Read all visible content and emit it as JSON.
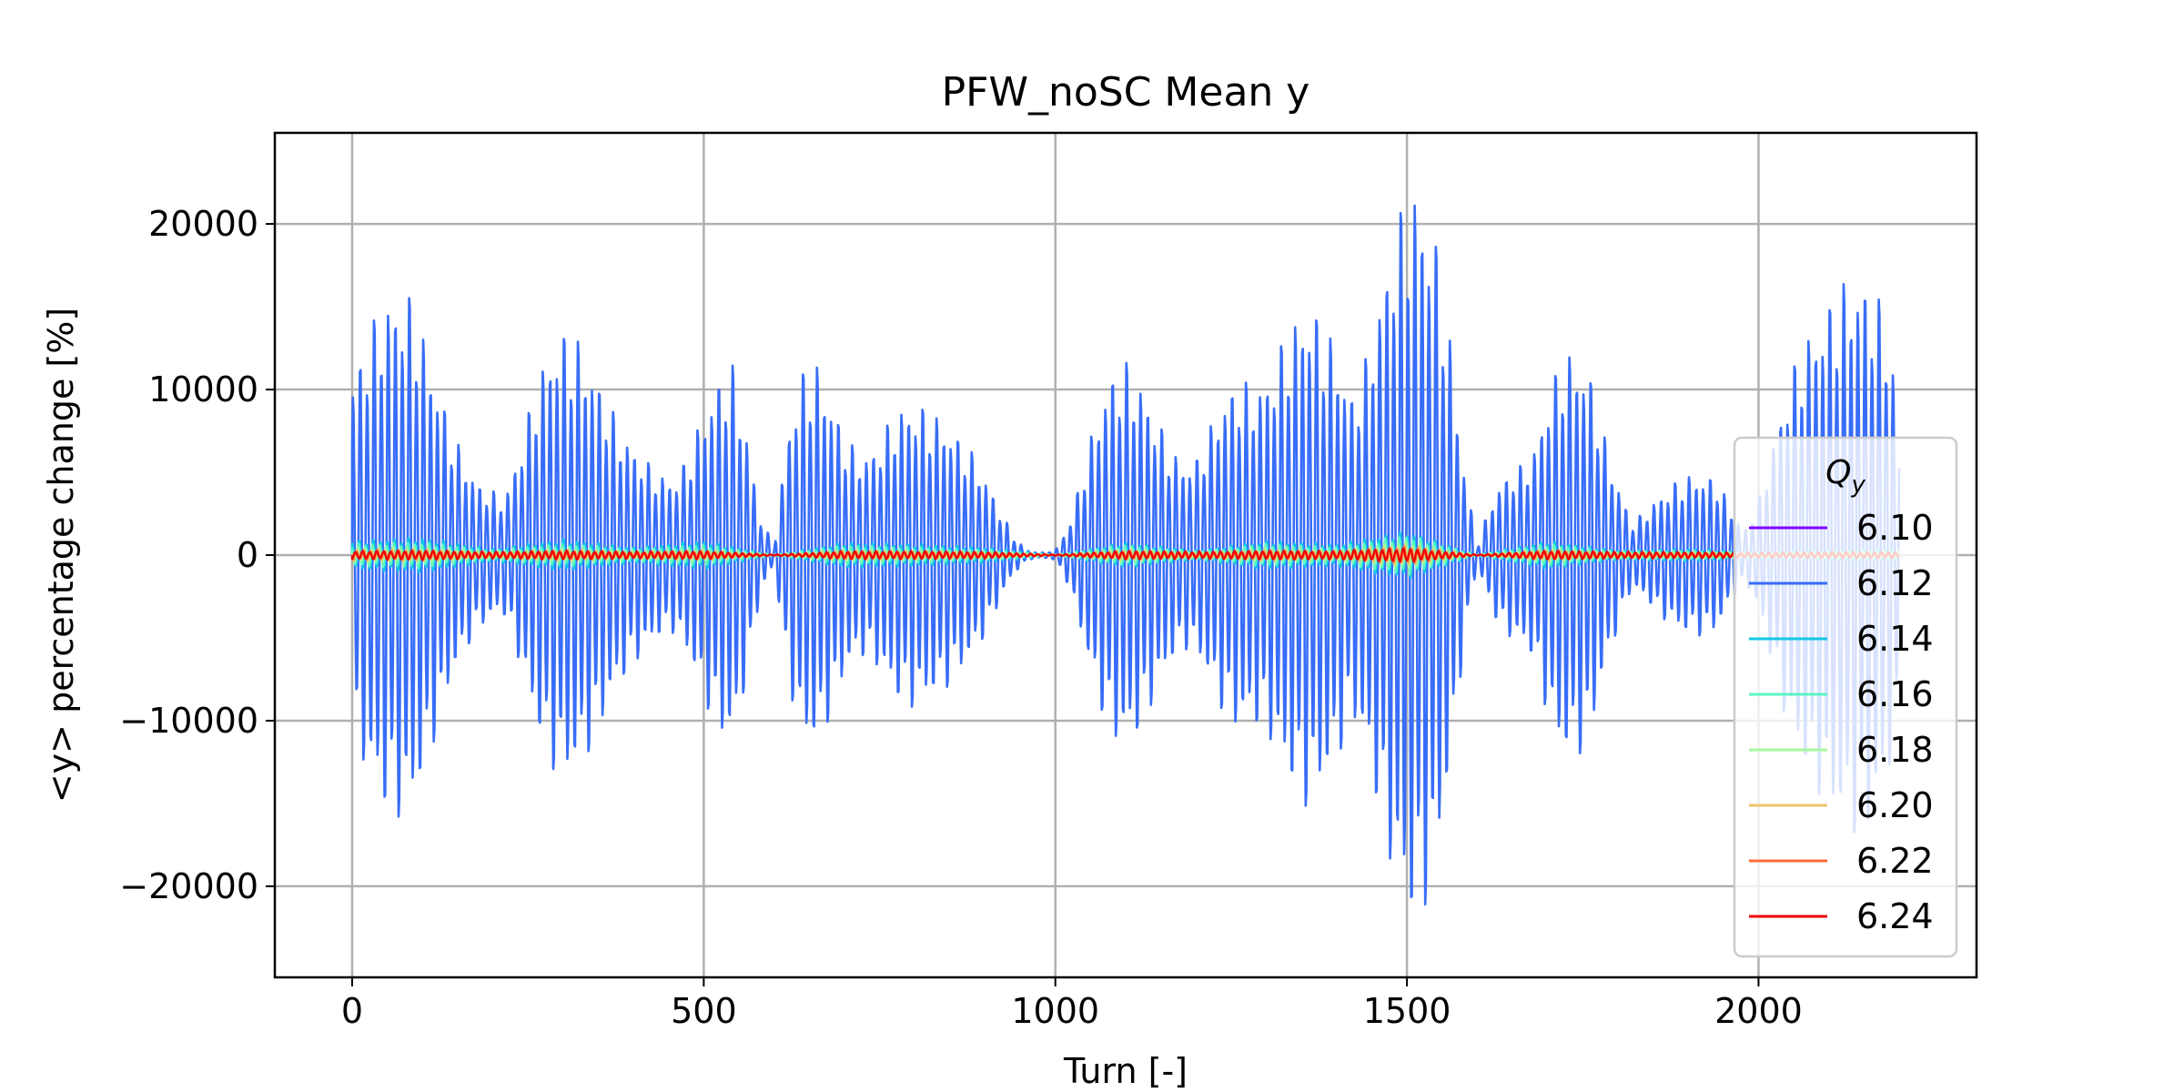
{
  "chart_data": {
    "type": "line",
    "title": "PFW_noSC Mean y",
    "xlabel": "Turn [-]",
    "ylabel": "<y> percentage change [%]",
    "xlim": [
      -110,
      2310
    ],
    "ylim": [
      -25500,
      25500
    ],
    "xticks": [
      0,
      500,
      1000,
      1500,
      2000
    ],
    "xtick_labels": [
      "0",
      "500",
      "1000",
      "1500",
      "2000"
    ],
    "yticks": [
      20000,
      10000,
      0,
      -10000,
      -20000
    ],
    "ytick_labels": [
      "20000",
      "10000",
      "0",
      "−10000",
      "−20000"
    ],
    "grid": true,
    "legend": {
      "title": "Q_y",
      "title_main": "Q",
      "title_sub": "y",
      "placement": "center-right"
    },
    "oscillation_period_turns": 10,
    "series": [
      {
        "name": "6.10",
        "color": "#7f00ff",
        "envelope": {
          "x": [
            0,
            100,
            300,
            600,
            1000,
            1500,
            1600,
            2000,
            2200
          ],
          "y": [
            60,
            80,
            60,
            5,
            5,
            90,
            5,
            40,
            60
          ]
        }
      },
      {
        "name": "6.12",
        "color": "#386df9",
        "envelope": {
          "x": [
            0,
            10,
            20,
            30,
            40,
            50,
            60,
            70,
            80,
            90,
            100,
            120,
            140,
            160,
            180,
            200,
            210,
            220,
            240,
            260,
            280,
            300,
            320,
            340,
            360,
            380,
            400,
            420,
            440,
            460,
            480,
            500,
            520,
            540,
            560,
            580,
            600,
            620,
            640,
            660,
            680,
            700,
            720,
            740,
            760,
            780,
            800,
            820,
            840,
            860,
            880,
            900,
            920,
            940,
            960,
            980,
            1000,
            1020,
            1040,
            1060,
            1080,
            1100,
            1120,
            1140,
            1160,
            1180,
            1200,
            1220,
            1240,
            1260,
            1280,
            1300,
            1320,
            1340,
            1360,
            1380,
            1400,
            1420,
            1440,
            1460,
            1480,
            1500,
            1510,
            1520,
            1540,
            1560,
            1580,
            1600,
            1620,
            1640,
            1660,
            1680,
            1700,
            1720,
            1740,
            1760,
            1780,
            1800,
            1820,
            1840,
            1860,
            1880,
            1900,
            1920,
            1940,
            1960,
            1980,
            2000,
            2020,
            2040,
            2060,
            2080,
            2100,
            2120,
            2140,
            2160,
            2180,
            2200
          ],
          "y": [
            11000,
            12500,
            13500,
            14500,
            15500,
            16000,
            16300,
            16400,
            16300,
            15500,
            14000,
            11000,
            8000,
            6000,
            4500,
            4000,
            3600,
            4000,
            7000,
            10500,
            13000,
            14000,
            13500,
            12000,
            10000,
            8000,
            6800,
            5800,
            5000,
            4800,
            6500,
            9000,
            11000,
            12000,
            8000,
            2500,
            500,
            8000,
            11500,
            12000,
            10000,
            7500,
            6300,
            6500,
            8000,
            9300,
            9500,
            9000,
            8500,
            7500,
            6500,
            5000,
            3000,
            1200,
            300,
            150,
            300,
            2000,
            5500,
            9000,
            11500,
            12000,
            11000,
            9000,
            7000,
            5800,
            6000,
            8000,
            10000,
            11000,
            10500,
            11000,
            13000,
            14800,
            15800,
            14500,
            13000,
            10000,
            12000,
            16000,
            20000,
            22500,
            23000,
            22500,
            20000,
            14000,
            6000,
            500,
            3500,
            5000,
            5500,
            6500,
            10000,
            12500,
            12700,
            11500,
            7500,
            4500,
            2000,
            2800,
            3800,
            4500,
            5000,
            5000,
            4800,
            3000,
            1500,
            3500,
            7000,
            10500,
            13000,
            14500,
            15800,
            17000,
            17500,
            17000,
            15000,
            10000
          ]
        }
      },
      {
        "name": "6.14",
        "color": "#12c8e6",
        "envelope": {
          "x": [
            0,
            100,
            200,
            300,
            400,
            500,
            600,
            700,
            800,
            900,
            1000,
            1100,
            1200,
            1300,
            1400,
            1500,
            1600,
            1700,
            1800,
            1900,
            2000,
            2100,
            2200
          ],
          "y": [
            900,
            1100,
            400,
            1000,
            500,
            900,
            20,
            800,
            700,
            500,
            30,
            800,
            300,
            900,
            700,
            1500,
            30,
            900,
            300,
            400,
            200,
            300,
            350
          ]
        }
      },
      {
        "name": "6.16",
        "color": "#5cf6c3",
        "envelope": {
          "x": [
            0,
            100,
            200,
            300,
            400,
            500,
            600,
            700,
            800,
            900,
            1000,
            1100,
            1200,
            1300,
            1400,
            1500,
            1600,
            1700,
            1800,
            1900,
            2000,
            2100,
            2200
          ],
          "y": [
            700,
            800,
            300,
            700,
            400,
            650,
            20,
            600,
            500,
            350,
            20,
            650,
            250,
            700,
            500,
            1250,
            20,
            700,
            250,
            300,
            150,
            250,
            280
          ]
        }
      },
      {
        "name": "6.18",
        "color": "#a4f89f",
        "envelope": {
          "x": [
            0,
            100,
            200,
            300,
            400,
            500,
            600,
            700,
            800,
            900,
            1000,
            1100,
            1200,
            1300,
            1400,
            1500,
            1600,
            1700,
            1800,
            1900,
            2000,
            2100,
            2200
          ],
          "y": [
            450,
            500,
            200,
            450,
            250,
            400,
            15,
            380,
            320,
            220,
            15,
            420,
            160,
            450,
            320,
            850,
            15,
            450,
            160,
            200,
            100,
            160,
            180
          ]
        }
      },
      {
        "name": "6.20",
        "color": "#edc56b",
        "envelope": {
          "x": [
            0,
            100,
            200,
            300,
            400,
            500,
            600,
            700,
            800,
            900,
            1000,
            1100,
            1200,
            1300,
            1400,
            1500,
            1600,
            1700,
            1800,
            1900,
            2000,
            2100,
            2200
          ],
          "y": [
            350,
            380,
            150,
            350,
            200,
            300,
            12,
            280,
            250,
            170,
            12,
            320,
            120,
            340,
            250,
            650,
            12,
            340,
            120,
            150,
            80,
            120,
            140
          ]
        }
      },
      {
        "name": "6.22",
        "color": "#ff6a3a",
        "envelope": {
          "x": [
            0,
            100,
            200,
            300,
            400,
            500,
            600,
            700,
            800,
            900,
            1000,
            1100,
            1200,
            1300,
            1400,
            1500,
            1600,
            1700,
            1800,
            1900,
            2000,
            2100,
            2200
          ],
          "y": [
            280,
            300,
            120,
            280,
            160,
            240,
            10,
            220,
            200,
            140,
            10,
            260,
            100,
            280,
            200,
            520,
            10,
            280,
            100,
            120,
            60,
            100,
            110
          ]
        }
      },
      {
        "name": "6.24",
        "color": "#ee0000",
        "envelope": {
          "x": [
            0,
            100,
            200,
            300,
            400,
            500,
            600,
            700,
            800,
            900,
            1000,
            1100,
            1200,
            1300,
            1400,
            1500,
            1600,
            1700,
            1800,
            1900,
            2000,
            2100,
            2200
          ],
          "y": [
            250,
            300,
            220,
            280,
            230,
            260,
            30,
            260,
            250,
            220,
            30,
            270,
            230,
            280,
            280,
            450,
            30,
            280,
            220,
            200,
            180,
            200,
            200
          ]
        }
      }
    ]
  }
}
